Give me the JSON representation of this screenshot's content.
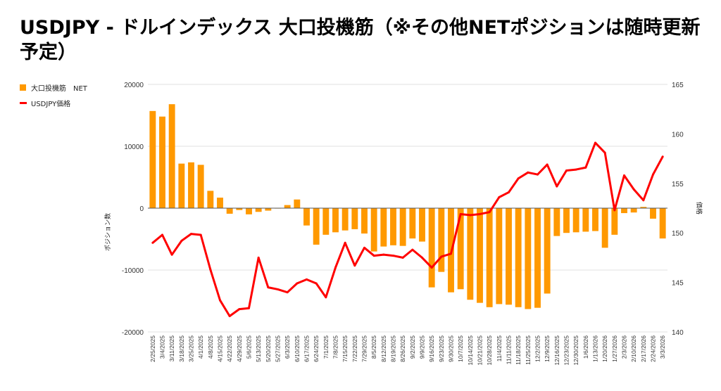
{
  "title": "USDJPY - ドルインデックス 大口投機筋（※その他NETポジションは随時更新予定）",
  "colors": {
    "bar": "#ff9900",
    "line": "#ff0000",
    "grid": "#e0e0e0",
    "zero": "#555555"
  },
  "chart_data": {
    "type": "bar+line",
    "title": "USDJPY - ドルインデックス 大口投機筋（※その他NETポジションは随時更新予定）",
    "legend_position": "top-left",
    "ylabel": "ポジション数",
    "y2label": "価格",
    "ylim": [
      -20000,
      20000
    ],
    "y2lim": [
      140,
      165
    ],
    "yticks": [
      20000,
      10000,
      0,
      -10000,
      -20000
    ],
    "y2ticks": [
      165,
      160,
      155,
      150,
      145,
      140
    ],
    "grid": true,
    "categories": [
      "2/25/2025",
      "3/4/2025",
      "3/11/2025",
      "3/18/2025",
      "3/25/2025",
      "4/1/2025",
      "4/8/2025",
      "4/15/2025",
      "4/22/2025",
      "4/29/2025",
      "5/6/2025",
      "5/13/2025",
      "5/20/2025",
      "5/27/2025",
      "6/3/2025",
      "6/10/2025",
      "6/17/2025",
      "6/24/2025",
      "7/1/2025",
      "7/8/2025",
      "7/15/2025",
      "7/22/2025",
      "7/29/2025",
      "8/5/2025",
      "8/12/2025",
      "8/19/2025",
      "8/26/2025",
      "9/2/2025",
      "9/9/2025",
      "9/16/2025",
      "9/23/2025",
      "9/30/2025",
      "10/7/2025",
      "10/14/2025",
      "10/21/2025",
      "10/28/2025",
      "11/4/2025",
      "11/11/2025",
      "11/18/2025",
      "11/25/2025",
      "12/2/2025",
      "12/9/2025",
      "12/16/2025",
      "12/23/2025",
      "12/30/2025",
      "1/6/2026",
      "1/13/2026",
      "1/20/2026",
      "1/27/2026",
      "2/3/2026",
      "2/10/2026",
      "2/17/2026",
      "2/24/2026",
      "3/3/2026"
    ],
    "series": [
      {
        "name": "大口投機筋　NET",
        "type": "bar",
        "axis": "left",
        "values": [
          15700,
          14800,
          16800,
          7200,
          7400,
          7000,
          2800,
          1700,
          -900,
          -300,
          -1000,
          -600,
          -400,
          -50,
          500,
          1400,
          -2800,
          -5900,
          -4300,
          -3900,
          -3600,
          -3400,
          -4100,
          -7000,
          -6200,
          -6000,
          -6100,
          -4900,
          -5400,
          -12800,
          -10300,
          -13600,
          -13100,
          -14800,
          -15300,
          -16000,
          -15500,
          -15600,
          -16000,
          -16300,
          -16100,
          -13800,
          -4500,
          -4000,
          -3900,
          -3800,
          -3700,
          -6400,
          -4300,
          -800,
          -700,
          200,
          -1700,
          -4900
        ]
      },
      {
        "name": "USDJPY価格",
        "type": "line",
        "axis": "right",
        "values": [
          149.0,
          149.8,
          147.8,
          149.2,
          149.9,
          149.8,
          146.3,
          143.2,
          141.6,
          142.3,
          142.4,
          147.5,
          144.5,
          144.3,
          144.0,
          144.9,
          145.3,
          144.9,
          143.5,
          146.5,
          149.0,
          146.7,
          148.5,
          147.7,
          147.8,
          147.7,
          147.5,
          148.3,
          147.5,
          146.5,
          147.6,
          147.9,
          151.9,
          151.8,
          151.9,
          152.1,
          153.6,
          154.1,
          155.5,
          156.1,
          155.9,
          156.9,
          154.7,
          156.3,
          156.4,
          156.6,
          159.1,
          158.1,
          152.3,
          155.8,
          154.4,
          153.3,
          155.9,
          157.7
        ]
      }
    ]
  }
}
